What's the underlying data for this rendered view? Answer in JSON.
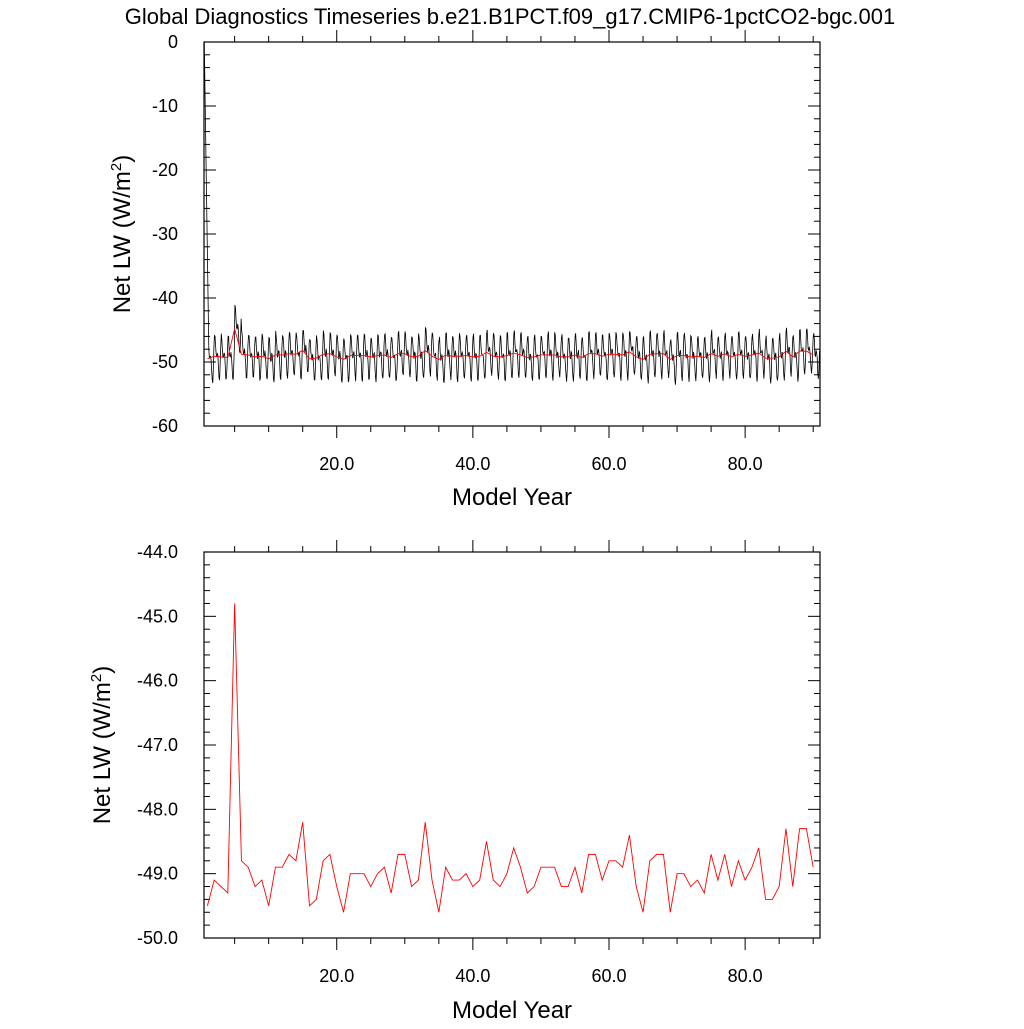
{
  "title": "Global Diagnostics Timeseries b.e21.B1PCT.f09_g17.CMIP6-1pctCO2-bgc.001",
  "colors": {
    "monthly": "#000000",
    "annual": "#ff0000",
    "frame": "#000000"
  },
  "chart_data": [
    {
      "type": "line",
      "xlabel": "Model Year",
      "ylabel": "Net LW (W/m",
      "ylabel_superscript": "2",
      "ylabel_suffix": ")",
      "xlim": [
        0.5,
        91
      ],
      "ylim": [
        -60,
        0
      ],
      "xticks": [
        20,
        40,
        60,
        80
      ],
      "xtick_labels": [
        "20.0",
        "40.0",
        "60.0",
        "80.0"
      ],
      "yticks": [
        0,
        -10,
        -20,
        -30,
        -40,
        -50,
        -60
      ],
      "ytick_labels": [
        "0",
        "-10",
        "-20",
        "-30",
        "-40",
        "-50",
        "-60"
      ],
      "monthly_series": {
        "x_start": 0.54,
        "x_step": 0.0833,
        "initial": [
          0.0,
          -6.0,
          -12.0,
          -18.0,
          -24.0,
          -30.0,
          -36.0,
          -42.0,
          -48.0
        ],
        "annual_cycle_amplitude": [
          2.4,
          1.8
        ],
        "noise": 0.4
      },
      "series": [
        {
          "name": "",
          "x_start": 1,
          "x_step": 1,
          "values": [
            -49.5,
            -49.1,
            -49.2,
            -49.3,
            -44.8,
            -48.8,
            -48.9,
            -49.2,
            -49.1,
            -49.5,
            -48.9,
            -48.9,
            -48.7,
            -48.8,
            -48.2,
            -49.5,
            -49.4,
            -48.8,
            -48.7,
            -49.2,
            -49.6,
            -49.0,
            -49.0,
            -49.0,
            -49.2,
            -49.0,
            -48.9,
            -49.3,
            -48.7,
            -48.7,
            -49.2,
            -49.1,
            -48.2,
            -49.1,
            -49.6,
            -48.9,
            -49.1,
            -49.1,
            -49.0,
            -49.2,
            -49.1,
            -48.5,
            -49.1,
            -49.2,
            -49.0,
            -48.6,
            -48.9,
            -49.3,
            -49.2,
            -48.9,
            -48.9,
            -48.9,
            -49.2,
            -49.2,
            -48.9,
            -49.3,
            -48.7,
            -48.7,
            -49.1,
            -48.8,
            -48.8,
            -48.9,
            -48.4,
            -49.2,
            -49.6,
            -48.8,
            -48.7,
            -48.7,
            -49.6,
            -49.0,
            -49.0,
            -49.2,
            -49.1,
            -49.3,
            -48.7,
            -49.1,
            -48.7,
            -49.2,
            -48.8,
            -49.1,
            -48.9,
            -48.6,
            -49.4,
            -49.4,
            -49.2,
            -48.3,
            -49.2,
            -48.3,
            -48.3,
            -48.9
          ]
        }
      ]
    },
    {
      "type": "line",
      "xlabel": "Model Year",
      "ylabel": "Net LW (W/m",
      "ylabel_superscript": "2",
      "ylabel_suffix": ")",
      "xlim": [
        0.5,
        91
      ],
      "ylim": [
        -50,
        -44
      ],
      "xticks": [
        20,
        40,
        60,
        80
      ],
      "xtick_labels": [
        "20.0",
        "40.0",
        "60.0",
        "80.0"
      ],
      "yticks": [
        -44,
        -45,
        -46,
        -47,
        -48,
        -49,
        -50
      ],
      "ytick_labels": [
        "-44.0",
        "-45.0",
        "-46.0",
        "-47.0",
        "-48.0",
        "-49.0",
        "-50.0"
      ],
      "series": [
        {
          "name": "",
          "x_start": 1,
          "x_step": 1,
          "values": [
            -49.5,
            -49.1,
            -49.2,
            -49.3,
            -44.8,
            -48.8,
            -48.9,
            -49.2,
            -49.1,
            -49.5,
            -48.9,
            -48.9,
            -48.7,
            -48.8,
            -48.2,
            -49.5,
            -49.4,
            -48.8,
            -48.7,
            -49.2,
            -49.6,
            -49.0,
            -49.0,
            -49.0,
            -49.2,
            -49.0,
            -48.9,
            -49.3,
            -48.7,
            -48.7,
            -49.2,
            -49.1,
            -48.2,
            -49.1,
            -49.6,
            -48.9,
            -49.1,
            -49.1,
            -49.0,
            -49.2,
            -49.1,
            -48.5,
            -49.1,
            -49.2,
            -49.0,
            -48.6,
            -48.9,
            -49.3,
            -49.2,
            -48.9,
            -48.9,
            -48.9,
            -49.2,
            -49.2,
            -48.9,
            -49.3,
            -48.7,
            -48.7,
            -49.1,
            -48.8,
            -48.8,
            -48.9,
            -48.4,
            -49.2,
            -49.6,
            -48.8,
            -48.7,
            -48.7,
            -49.6,
            -49.0,
            -49.0,
            -49.2,
            -49.1,
            -49.3,
            -48.7,
            -49.1,
            -48.7,
            -49.2,
            -48.8,
            -49.1,
            -48.9,
            -48.6,
            -49.4,
            -49.4,
            -49.2,
            -48.3,
            -49.2,
            -48.3,
            -48.3,
            -48.9
          ]
        }
      ]
    }
  ]
}
